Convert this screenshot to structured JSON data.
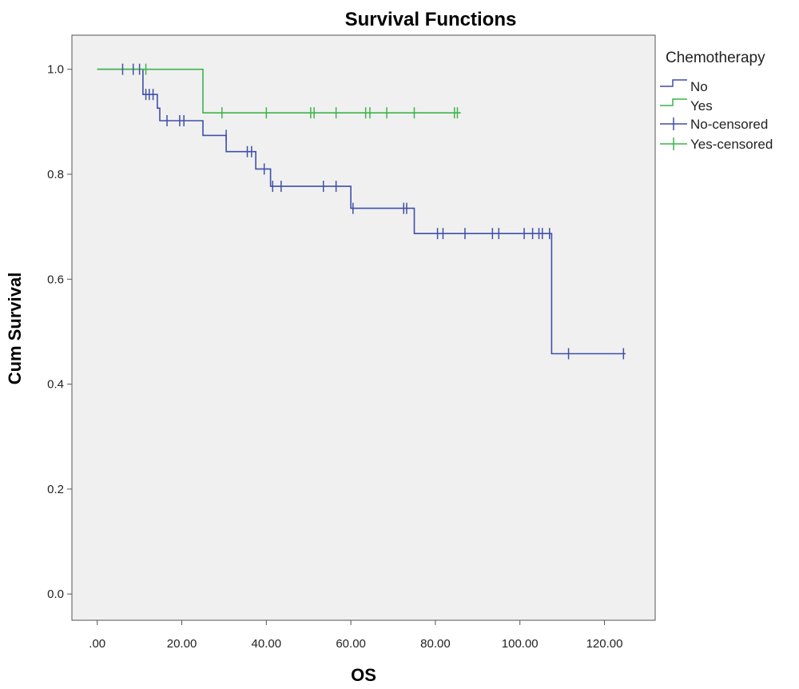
{
  "chart_data": {
    "type": "line",
    "title": "Survival Functions",
    "xlabel": "OS",
    "ylabel": "Cum Survival",
    "xlim": [
      -6,
      132
    ],
    "ylim": [
      -0.05,
      1.065
    ],
    "x_ticks": [
      0,
      20,
      40,
      60,
      80,
      100,
      120
    ],
    "x_tick_labels": [
      ".00",
      "20.00",
      "40.00",
      "60.00",
      "80.00",
      "100.00",
      "120.00"
    ],
    "y_ticks": [
      0.0,
      0.2,
      0.4,
      0.6,
      0.8,
      1.0
    ],
    "y_tick_labels": [
      "0.0",
      "0.2",
      "0.4",
      "0.6",
      "0.8",
      "1.0"
    ],
    "grid": false,
    "plot_background": "#f0f0f0",
    "legend": {
      "title": "Chemotherapy",
      "position": "top-right outside",
      "entries": [
        "No",
        "Yes",
        "No-censored",
        "Yes-censored"
      ]
    },
    "series": [
      {
        "name": "No",
        "color": "#3f4fa8",
        "steps": [
          [
            0,
            1.0
          ],
          [
            10.8,
            0.952
          ],
          [
            14.2,
            0.926
          ],
          [
            14.8,
            0.902
          ],
          [
            25,
            0.874
          ],
          [
            30.5,
            0.843
          ],
          [
            37.5,
            0.81
          ],
          [
            41,
            0.777
          ],
          [
            60,
            0.735
          ],
          [
            75,
            0.687
          ],
          [
            107.5,
            0.458
          ],
          [
            125,
            0.458
          ]
        ],
        "censored": [
          [
            6,
            1.0
          ],
          [
            8.5,
            1.0
          ],
          [
            10,
            1.0
          ],
          [
            11.5,
            0.952
          ],
          [
            12.3,
            0.952
          ],
          [
            13.2,
            0.952
          ],
          [
            16.5,
            0.902
          ],
          [
            19.5,
            0.902
          ],
          [
            20.5,
            0.902
          ],
          [
            30.5,
            0.874
          ],
          [
            35.5,
            0.843
          ],
          [
            36.5,
            0.843
          ],
          [
            39.5,
            0.81
          ],
          [
            41.5,
            0.777
          ],
          [
            43.5,
            0.777
          ],
          [
            53.5,
            0.777
          ],
          [
            56.5,
            0.777
          ],
          [
            60.5,
            0.735
          ],
          [
            72.5,
            0.735
          ],
          [
            73.2,
            0.735
          ],
          [
            80.5,
            0.687
          ],
          [
            81.8,
            0.687
          ],
          [
            87,
            0.687
          ],
          [
            93.5,
            0.687
          ],
          [
            95,
            0.687
          ],
          [
            101,
            0.687
          ],
          [
            103,
            0.687
          ],
          [
            104.5,
            0.687
          ],
          [
            105.3,
            0.687
          ],
          [
            107,
            0.687
          ],
          [
            111.5,
            0.458
          ],
          [
            124.5,
            0.458
          ]
        ]
      },
      {
        "name": "Yes",
        "color": "#3cb44b",
        "steps": [
          [
            0,
            1.0
          ],
          [
            25,
            0.917
          ],
          [
            86,
            0.917
          ]
        ],
        "censored": [
          [
            11.5,
            1.0
          ],
          [
            29.5,
            0.917
          ],
          [
            40,
            0.917
          ],
          [
            50.5,
            0.917
          ],
          [
            51.3,
            0.917
          ],
          [
            56.5,
            0.917
          ],
          [
            63.5,
            0.917
          ],
          [
            64.5,
            0.917
          ],
          [
            68.5,
            0.917
          ],
          [
            75,
            0.917
          ],
          [
            84.5,
            0.917
          ],
          [
            85.2,
            0.917
          ]
        ]
      }
    ]
  }
}
